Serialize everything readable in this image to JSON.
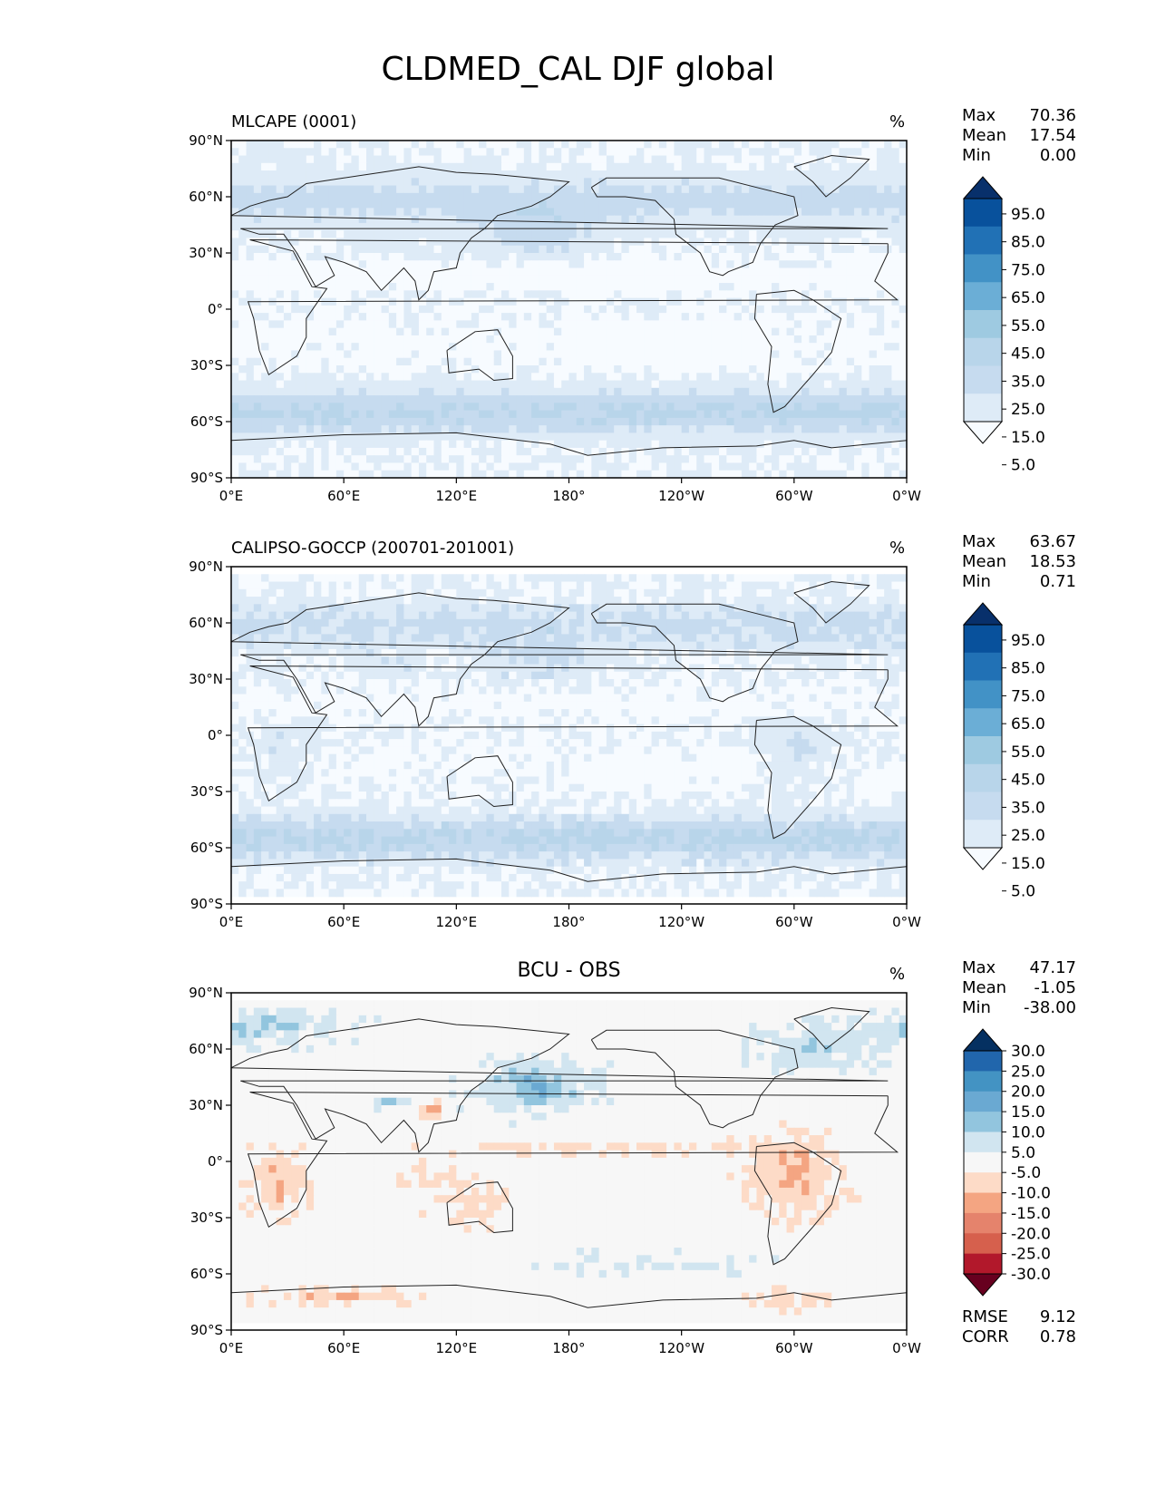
{
  "figure": {
    "title": "CLDMED_CAL DJF global"
  },
  "x_tick_labels": [
    "0°E",
    "60°E",
    "120°E",
    "180°",
    "120°W",
    "60°W",
    "0°W"
  ],
  "y_tick_labels": [
    "90°N",
    "60°N",
    "30°N",
    "0°",
    "30°S",
    "60°S",
    "90°S"
  ],
  "chart_data": [
    {
      "type": "heatmap",
      "title": "MLCAPE (0001)",
      "units": "%",
      "xlim": [
        0,
        360
      ],
      "ylim": [
        -90,
        90
      ],
      "stats": [
        {
          "label": "Max",
          "value": "70.36"
        },
        {
          "label": "Mean",
          "value": "17.54"
        },
        {
          "label": "Min",
          "value": "0.00"
        }
      ],
      "colorbar": {
        "type": "sequential",
        "tick_labels": [
          "95.0",
          "85.0",
          "75.0",
          "65.0",
          "55.0",
          "45.0",
          "35.0",
          "25.0",
          "15.0",
          "5.0"
        ],
        "colors": [
          "#08306b",
          "#08519c",
          "#2171b5",
          "#4292c6",
          "#6baed6",
          "#9ecae1",
          "#b8d5ea",
          "#c6dbef",
          "#deebf7",
          "#f7fbff"
        ]
      }
    },
    {
      "type": "heatmap",
      "title": "CALIPSO-GOCCP (200701-201001)",
      "units": "%",
      "xlim": [
        0,
        360
      ],
      "ylim": [
        -90,
        90
      ],
      "stats": [
        {
          "label": "Max",
          "value": "63.67"
        },
        {
          "label": "Mean",
          "value": "18.53"
        },
        {
          "label": "Min",
          "value": "0.71"
        }
      ],
      "colorbar": {
        "type": "sequential",
        "tick_labels": [
          "95.0",
          "85.0",
          "75.0",
          "65.0",
          "55.0",
          "45.0",
          "35.0",
          "25.0",
          "15.0",
          "5.0"
        ],
        "colors": [
          "#08306b",
          "#08519c",
          "#2171b5",
          "#4292c6",
          "#6baed6",
          "#9ecae1",
          "#b8d5ea",
          "#c6dbef",
          "#deebf7",
          "#f7fbff"
        ]
      }
    },
    {
      "type": "heatmap",
      "title": "BCU - OBS",
      "units": "%",
      "xlim": [
        0,
        360
      ],
      "ylim": [
        -90,
        90
      ],
      "stats": [
        {
          "label": "Max",
          "value": "47.17"
        },
        {
          "label": "Mean",
          "value": "-1.05"
        },
        {
          "label": "Min",
          "value": "-38.00"
        }
      ],
      "extra_stats": [
        {
          "label": "RMSE",
          "value": "9.12"
        },
        {
          "label": "CORR",
          "value": "0.78"
        }
      ],
      "colorbar": {
        "type": "diverging",
        "tick_labels": [
          "30.0",
          "25.0",
          "20.0",
          "15.0",
          "10.0",
          "5.0",
          "-5.0",
          "-10.0",
          "-15.0",
          "-20.0",
          "-25.0",
          "-30.0"
        ],
        "colors": [
          "#053061",
          "#2166ac",
          "#4393c3",
          "#6aa9d2",
          "#92c5de",
          "#d1e5f0",
          "#f7f7f7",
          "#fddbc7",
          "#f4a582",
          "#e5836c",
          "#d6604d",
          "#b2182b",
          "#67001f"
        ]
      }
    }
  ]
}
